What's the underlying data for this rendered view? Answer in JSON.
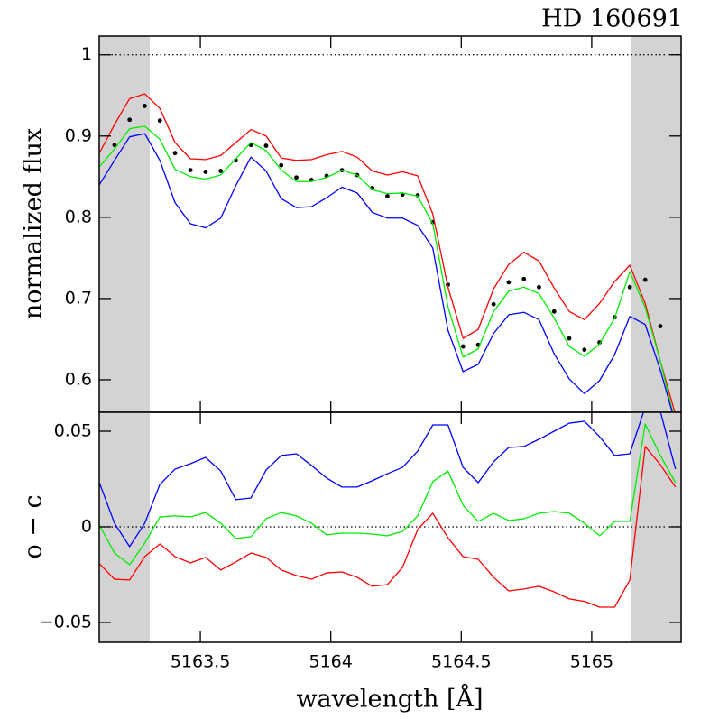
{
  "chart_data": [
    {
      "type": "line",
      "title": "HD 160691",
      "ylabel": "normalized flux",
      "ylim": [
        0.56,
        1.023
      ],
      "yticks": [
        0.6,
        0.7,
        0.8,
        0.9,
        1
      ],
      "hline": 1,
      "x": [
        5163.113,
        5163.171,
        5163.229,
        5163.287,
        5163.345,
        5163.403,
        5163.462,
        5163.52,
        5163.578,
        5163.636,
        5163.694,
        5163.752,
        5163.81,
        5163.868,
        5163.926,
        5163.984,
        5164.043,
        5164.101,
        5164.159,
        5164.217,
        5164.275,
        5164.333,
        5164.391,
        5164.449,
        5164.507,
        5164.565,
        5164.624,
        5164.682,
        5164.74,
        5164.798,
        5164.856,
        5164.914,
        5164.972,
        5165.03,
        5165.088,
        5165.146,
        5165.205,
        5165.263,
        5165.321
      ],
      "series": [
        {
          "type": "scatter",
          "color": "#000000",
          "x": [
            5163.171,
            5163.229,
            5163.287,
            5163.345,
            5163.403,
            5163.462,
            5163.52,
            5163.578,
            5163.636,
            5163.694,
            5163.752,
            5163.81,
            5163.868,
            5163.926,
            5163.984,
            5164.043,
            5164.101,
            5164.159,
            5164.217,
            5164.275,
            5164.333,
            5164.391,
            5164.449,
            5164.507,
            5164.565,
            5164.624,
            5164.682,
            5164.74,
            5164.798,
            5164.856,
            5164.914,
            5164.972,
            5165.03,
            5165.088,
            5165.146,
            5165.205,
            5165.263
          ],
          "values": [
            0.889,
            0.92,
            0.937,
            0.919,
            0.879,
            0.858,
            0.856,
            0.857,
            0.87,
            0.889,
            0.888,
            0.864,
            0.849,
            0.846,
            0.851,
            0.858,
            0.852,
            0.836,
            0.826,
            0.828,
            0.827,
            0.794,
            0.717,
            0.641,
            0.643,
            0.693,
            0.72,
            0.724,
            0.714,
            0.684,
            0.651,
            0.637,
            0.646,
            0.677,
            0.714,
            0.723,
            0.666
          ]
        },
        {
          "type": "line",
          "color": "#ff0000",
          "values": [
            0.879,
            0.914,
            0.946,
            0.952,
            0.934,
            0.892,
            0.872,
            0.871,
            0.876,
            0.892,
            0.908,
            0.9,
            0.873,
            0.87,
            0.871,
            0.877,
            0.881,
            0.874,
            0.857,
            0.852,
            0.856,
            0.851,
            0.804,
            0.714,
            0.651,
            0.662,
            0.712,
            0.742,
            0.757,
            0.746,
            0.713,
            0.684,
            0.674,
            0.694,
            0.721,
            0.741,
            0.694,
            0.623,
            0.557
          ]
        },
        {
          "type": "line",
          "color": "#00ee00",
          "values": [
            0.862,
            0.884,
            0.909,
            0.912,
            0.896,
            0.859,
            0.85,
            0.847,
            0.852,
            0.872,
            0.892,
            0.882,
            0.858,
            0.844,
            0.844,
            0.849,
            0.858,
            0.852,
            0.834,
            0.829,
            0.83,
            0.826,
            0.792,
            0.69,
            0.628,
            0.638,
            0.684,
            0.709,
            0.714,
            0.706,
            0.676,
            0.641,
            0.629,
            0.644,
            0.676,
            0.733,
            0.689,
            0.623,
            0.546
          ]
        },
        {
          "type": "line",
          "color": "#0000ff",
          "values": [
            0.84,
            0.87,
            0.899,
            0.903,
            0.87,
            0.818,
            0.792,
            0.787,
            0.799,
            0.839,
            0.874,
            0.857,
            0.823,
            0.812,
            0.813,
            0.824,
            0.837,
            0.83,
            0.806,
            0.799,
            0.799,
            0.79,
            0.762,
            0.661,
            0.61,
            0.619,
            0.657,
            0.68,
            0.683,
            0.674,
            0.632,
            0.601,
            0.583,
            0.599,
            0.631,
            0.678,
            0.668,
            0.612,
            0.546
          ]
        }
      ]
    },
    {
      "type": "line",
      "ylabel": "o − c",
      "xlabel": "wavelength [Å]",
      "xlim": [
        5163.1125,
        5165.3426
      ],
      "xticks": [
        5163.5,
        5164,
        5164.5,
        5165
      ],
      "ylim": [
        -0.0604,
        0.0599
      ],
      "yticks": [
        {
          "value": -0.05,
          "label": "−0.05"
        },
        0,
        0.05
      ],
      "hline": 0,
      "shaded_regions": [
        [
          5163.1125,
          5163.306
        ],
        [
          5165.149,
          5165.3426
        ]
      ],
      "x": [
        5163.113,
        5163.171,
        5163.229,
        5163.287,
        5163.345,
        5163.403,
        5163.462,
        5163.52,
        5163.578,
        5163.636,
        5163.694,
        5163.752,
        5163.81,
        5163.868,
        5163.926,
        5163.984,
        5164.043,
        5164.101,
        5164.159,
        5164.217,
        5164.275,
        5164.333,
        5164.391,
        5164.449,
        5164.507,
        5164.565,
        5164.624,
        5164.682,
        5164.74,
        5164.798,
        5164.856,
        5164.914,
        5164.972,
        5165.03,
        5165.088,
        5165.146,
        5165.205,
        5165.263,
        5165.321
      ],
      "series": [
        {
          "type": "line",
          "color": "#0000ff",
          "values": [
            0.0231,
            0.0019,
            -0.0104,
            0.0019,
            0.0222,
            0.0302,
            0.033,
            0.0363,
            0.0292,
            0.0142,
            0.0151,
            0.0297,
            0.0373,
            0.0382,
            0.0321,
            0.0255,
            0.0208,
            0.0208,
            0.0241,
            0.0278,
            0.0311,
            0.0396,
            0.0533,
            0.0533,
            0.0311,
            0.0231,
            0.034,
            0.0415,
            0.042,
            0.0458,
            0.05,
            0.0542,
            0.0552,
            0.0472,
            0.0373,
            0.0382,
            0.0627,
            0.0604,
            0.0302
          ]
        },
        {
          "type": "line",
          "color": "#00ee00",
          "values": [
            0.0009,
            -0.0137,
            -0.0198,
            -0.0085,
            0.0052,
            0.0057,
            0.0052,
            0.0075,
            0.0019,
            -0.0061,
            -0.0052,
            0.0042,
            0.0075,
            0.0057,
            0.0019,
            -0.0042,
            -0.0033,
            -0.0033,
            -0.0038,
            -0.0047,
            -0.0024,
            0.0057,
            0.0236,
            0.0292,
            0.0113,
            0.0028,
            0.0071,
            0.0033,
            0.0042,
            0.0071,
            0.008,
            0.0071,
            0.0019,
            -0.0047,
            0.0028,
            0.0028,
            0.0538,
            0.0373,
            0.0231
          ]
        },
        {
          "type": "line",
          "color": "#ff0000",
          "values": [
            -0.0193,
            -0.0274,
            -0.0278,
            -0.0156,
            -0.009,
            -0.0156,
            -0.0189,
            -0.016,
            -0.0226,
            -0.0184,
            -0.0137,
            -0.016,
            -0.0226,
            -0.0255,
            -0.0274,
            -0.0241,
            -0.0236,
            -0.0264,
            -0.0311,
            -0.0302,
            -0.0212,
            -0.0014,
            0.0071,
            -0.0057,
            -0.0156,
            -0.017,
            -0.0264,
            -0.0335,
            -0.0325,
            -0.0311,
            -0.034,
            -0.0377,
            -0.039,
            -0.042,
            -0.042,
            -0.0278,
            0.042,
            0.0325,
            0.0208
          ]
        }
      ]
    }
  ]
}
